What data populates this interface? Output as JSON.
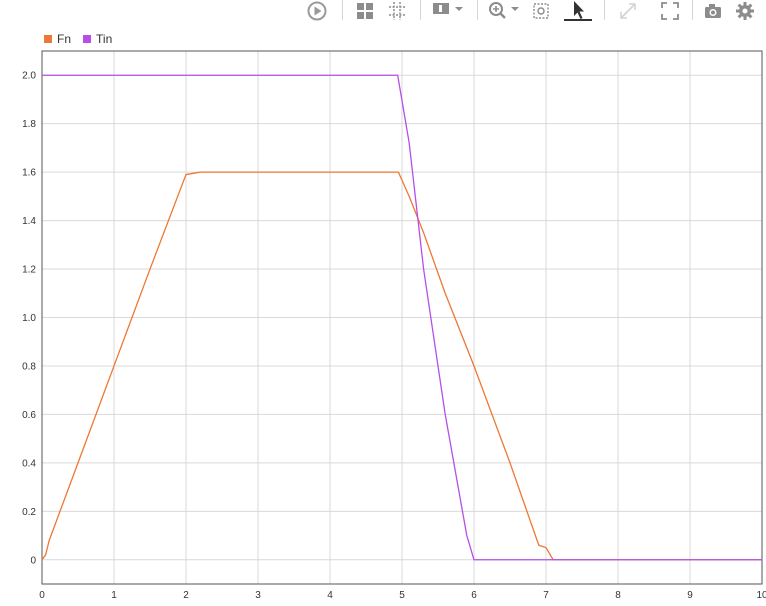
{
  "toolbar": {
    "icons": [
      "play-icon",
      "layout-icon",
      "cursors-icon",
      "triggers-icon",
      "zoom-in-icon",
      "zoom-fit-icon",
      "select-cursor-icon",
      "expand-icon",
      "autoscale-icon",
      "camera-icon",
      "gear-icon"
    ]
  },
  "colors": {
    "Fn": "#ee7735",
    "Tin": "#b54fe8",
    "grid": "#d9d9d9",
    "frame": "#555555"
  },
  "chart_data": {
    "type": "line",
    "xlim": [
      0,
      10
    ],
    "ylim": [
      -0.1,
      2.1
    ],
    "x_ticks": [
      "0",
      "1",
      "2",
      "3",
      "4",
      "5",
      "6",
      "7",
      "8",
      "9",
      "10"
    ],
    "y_ticks": [
      "0",
      "0.2",
      "0.4",
      "0.6",
      "0.8",
      "1.0",
      "1.2",
      "1.4",
      "1.6",
      "1.8",
      "2.0"
    ],
    "grid": true,
    "legend": "top-left",
    "series": [
      {
        "name": "Fn",
        "x": [
          0,
          0.05,
          0.1,
          0.2,
          0.6,
          1.0,
          1.5,
          2.0,
          2.2,
          2.5,
          3.0,
          4.0,
          4.9,
          4.95,
          5.1,
          5.3,
          5.6,
          6.0,
          6.5,
          6.9,
          7.0,
          7.1,
          7.3,
          8,
          9,
          10
        ],
        "y": [
          0,
          0.02,
          0.08,
          0.16,
          0.48,
          0.8,
          1.2,
          1.59,
          1.6,
          1.6,
          1.6,
          1.6,
          1.6,
          1.6,
          1.5,
          1.35,
          1.1,
          0.8,
          0.4,
          0.06,
          0.05,
          0.0,
          0.0,
          0.0,
          0.0,
          0.0
        ]
      },
      {
        "name": "Tin",
        "x": [
          0,
          1,
          2,
          3,
          4,
          4.94,
          5.1,
          5.3,
          5.6,
          5.9,
          6.0,
          7,
          8,
          9,
          10
        ],
        "y": [
          2.0,
          2.0,
          2.0,
          2.0,
          2.0,
          2.0,
          1.72,
          1.2,
          0.6,
          0.1,
          0.0,
          0.0,
          0.0,
          0.0,
          0.0
        ]
      }
    ]
  }
}
